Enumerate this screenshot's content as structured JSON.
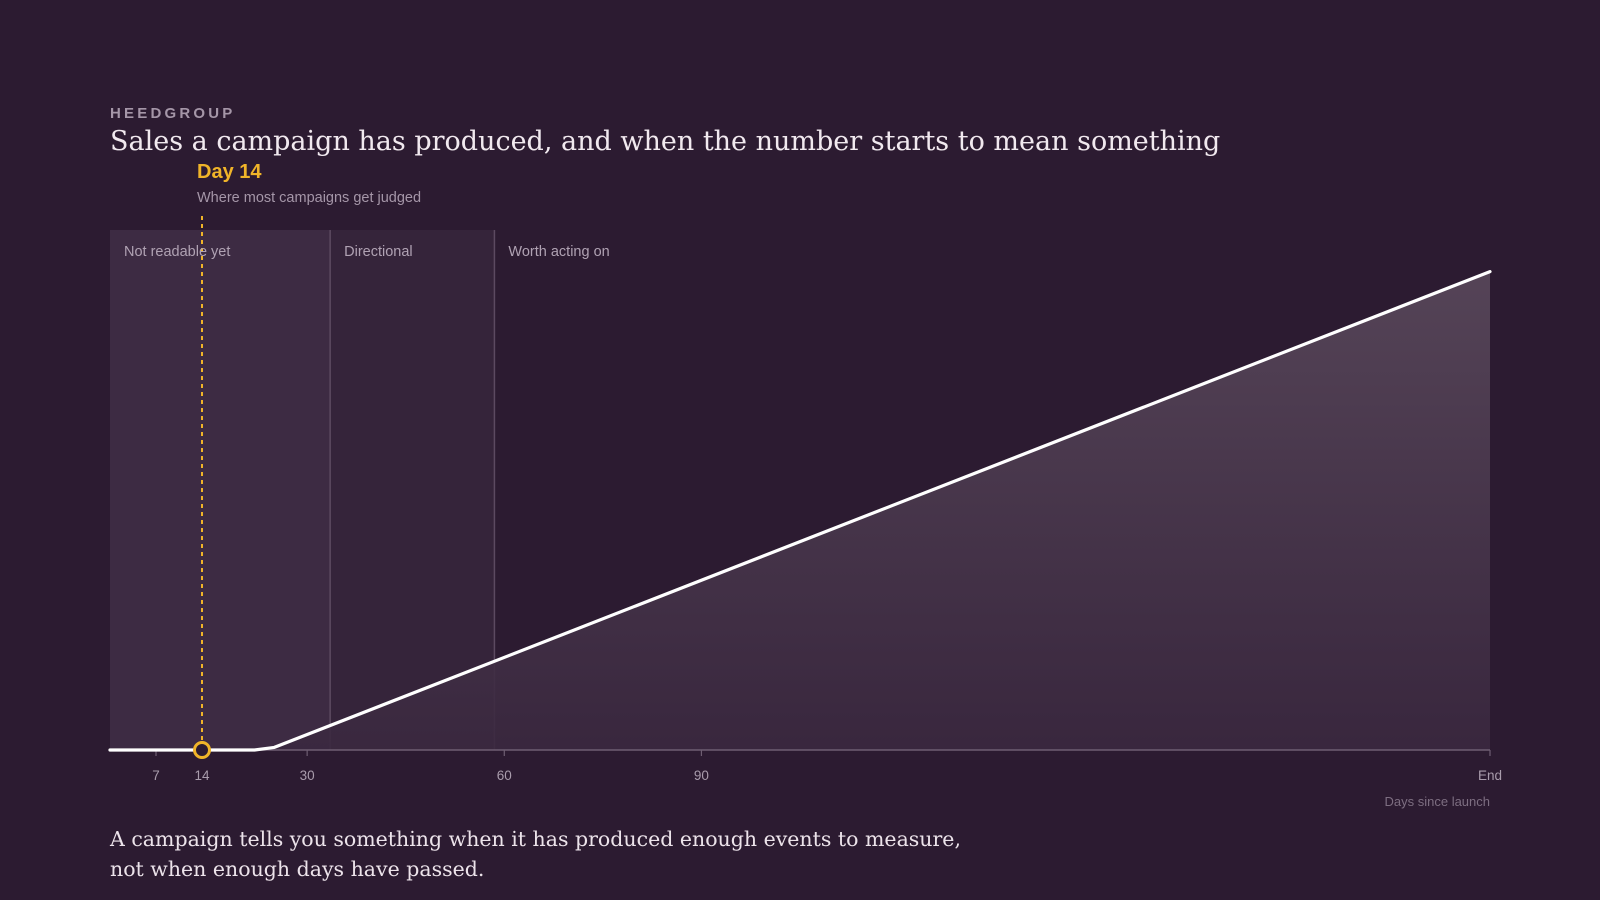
{
  "brand": "HEEDGROUP",
  "title": "Sales a campaign has produced, and when the number starts to mean something",
  "caption": {
    "line1": "A campaign tells you something when it has produced enough events to measure,",
    "line2": "not when enough days have passed."
  },
  "chart_data": {
    "type": "area",
    "xlabel": "Days since launch",
    "ylabel": "",
    "xlim": [
      0,
      210
    ],
    "ylim": [
      0,
      100
    ],
    "x": [
      0,
      22,
      25,
      210
    ],
    "values": [
      0,
      0,
      0.5,
      92
    ],
    "ticks": [
      {
        "value": 7,
        "label": "7"
      },
      {
        "value": 14,
        "label": "14"
      },
      {
        "value": 30,
        "label": "30"
      },
      {
        "value": 60,
        "label": "60"
      },
      {
        "value": 90,
        "label": "90"
      },
      {
        "value": 210,
        "label": "End"
      }
    ],
    "zones": [
      {
        "label": "Not readable yet",
        "from": 0,
        "to": 33.5
      },
      {
        "label": "Directional",
        "from": 33.5,
        "to": 58.5
      },
      {
        "label": "Worth acting on",
        "from": 58.5,
        "to": 210
      }
    ],
    "marker": {
      "x": 14,
      "y": 0,
      "label": "Day 14",
      "sublabel": "Where most campaigns get judged"
    },
    "grid": false,
    "legend": "none",
    "colors": {
      "line": "#ffffff",
      "marker": "#f0b429",
      "zone_early": "#3d2b43",
      "zone_mid": "#35243a",
      "zone_divider": "#5c4a61",
      "axis": "#6e5e72",
      "tick_text": "#a99cac"
    }
  }
}
